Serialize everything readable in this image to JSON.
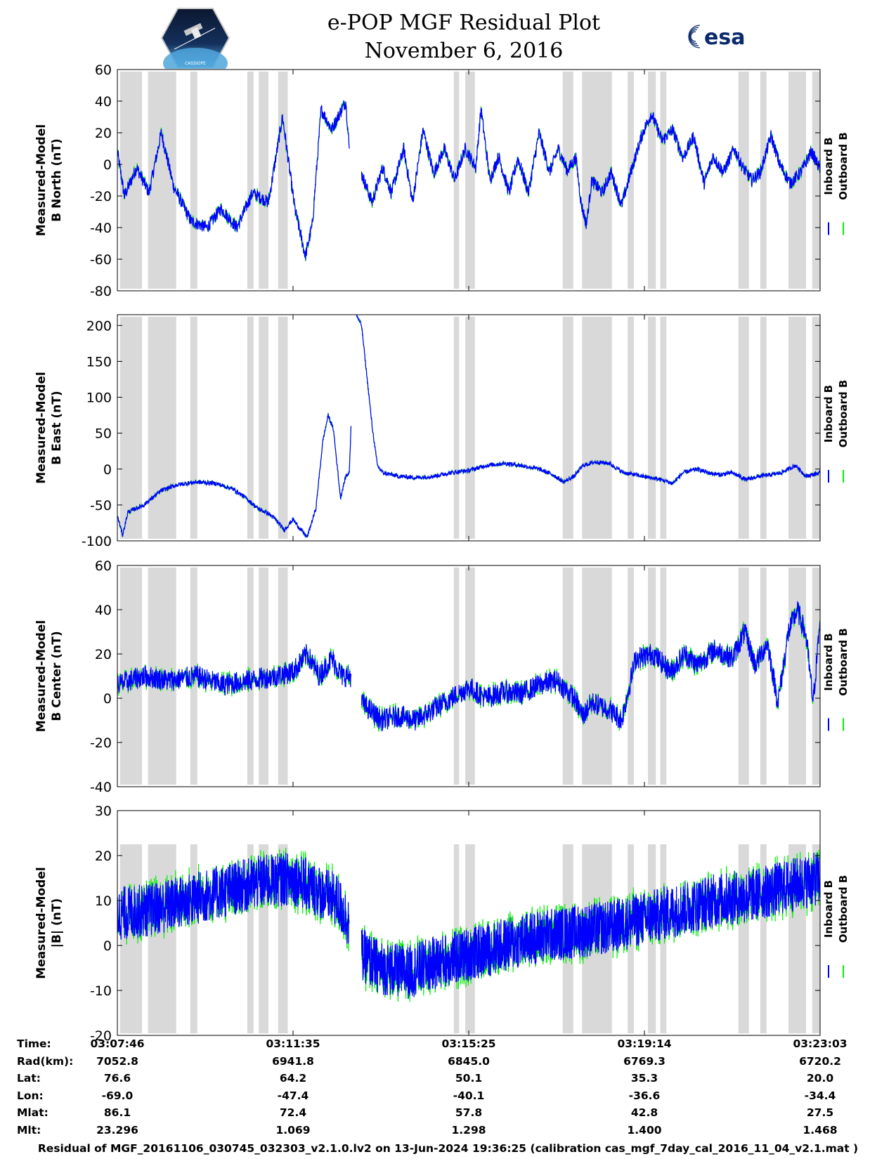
{
  "header": {
    "title_line1": "e-POP MGF Residual Plot",
    "title_line2": "November 6, 2016"
  },
  "logos": {
    "left": "cassiope-logo",
    "right_text": "esa"
  },
  "colors": {
    "inboard": "#0000ff",
    "outboard": "#00ee00",
    "shade": "#d9d9d9"
  },
  "chart_data": [
    {
      "type": "line",
      "ylabel_line1": "Measured-Model",
      "ylabel_line2": "B North (nT)",
      "ylim": [
        -80,
        60
      ],
      "yticks": [
        -80,
        -60,
        -40,
        -20,
        0,
        20,
        40,
        60
      ],
      "series": [
        {
          "name": "Inboard B"
        },
        {
          "name": "Outboard B"
        }
      ],
      "keypoints": [
        [
          0,
          8
        ],
        [
          0.4,
          -20
        ],
        [
          1.1,
          -2
        ],
        [
          1.8,
          -18
        ],
        [
          2.5,
          20
        ],
        [
          3.2,
          -14
        ],
        [
          4.2,
          -36
        ],
        [
          5.1,
          -40
        ],
        [
          5.9,
          -28
        ],
        [
          6.8,
          -40
        ],
        [
          7.7,
          -18
        ],
        [
          8.6,
          -24
        ],
        [
          9.4,
          30
        ],
        [
          10.1,
          -28
        ],
        [
          10.7,
          -58
        ],
        [
          11.1,
          -38
        ],
        [
          11.6,
          35
        ],
        [
          12.2,
          22
        ],
        [
          13.0,
          40
        ],
        [
          13.2,
          10
        ],
        [
          13.5,
          null
        ],
        [
          13.9,
          -6
        ],
        [
          14.5,
          -24
        ],
        [
          15.1,
          -2
        ],
        [
          15.6,
          -18
        ],
        [
          16.3,
          10
        ],
        [
          16.8,
          -24
        ],
        [
          17.4,
          22
        ],
        [
          18.0,
          -6
        ],
        [
          18.6,
          10
        ],
        [
          19.2,
          -10
        ],
        [
          19.8,
          10
        ],
        [
          20.4,
          -2
        ],
        [
          20.7,
          35
        ],
        [
          21.2,
          -10
        ],
        [
          21.7,
          5
        ],
        [
          22.3,
          -18
        ],
        [
          22.8,
          4
        ],
        [
          23.4,
          -18
        ],
        [
          24.0,
          20
        ],
        [
          24.6,
          -5
        ],
        [
          25.1,
          10
        ],
        [
          25.6,
          -4
        ],
        [
          26.1,
          4
        ],
        [
          26.4,
          -25
        ],
        [
          26.7,
          -38
        ],
        [
          27.0,
          -10
        ],
        [
          27.6,
          -18
        ],
        [
          28.1,
          -5
        ],
        [
          28.7,
          -26
        ],
        [
          29.3,
          -2
        ],
        [
          29.9,
          20
        ],
        [
          30.4,
          32
        ],
        [
          31.0,
          15
        ],
        [
          31.6,
          22
        ],
        [
          32.2,
          4
        ],
        [
          32.8,
          18
        ],
        [
          33.4,
          -12
        ],
        [
          33.9,
          5
        ],
        [
          34.5,
          -5
        ],
        [
          35.1,
          10
        ],
        [
          35.6,
          -2
        ],
        [
          36.1,
          -10
        ],
        [
          36.6,
          -5
        ],
        [
          37.2,
          18
        ],
        [
          37.7,
          0
        ],
        [
          38.3,
          -12
        ],
        [
          38.9,
          -5
        ],
        [
          39.5,
          8
        ],
        [
          40.0,
          -3
        ]
      ],
      "noise": 4
    },
    {
      "type": "line",
      "ylabel_line1": "Measured-Model",
      "ylabel_line2": "B East (nT)",
      "ylim": [
        -100,
        215
      ],
      "yticks": [
        -100,
        -50,
        0,
        50,
        100,
        150,
        200
      ],
      "series": [
        {
          "name": "Inboard B"
        },
        {
          "name": "Outboard B"
        }
      ],
      "keypoints": [
        [
          0,
          -65
        ],
        [
          0.3,
          -92
        ],
        [
          0.6,
          -60
        ],
        [
          1.5,
          -50
        ],
        [
          2.5,
          -30
        ],
        [
          3.4,
          -22
        ],
        [
          4.5,
          -18
        ],
        [
          5.6,
          -20
        ],
        [
          6.6,
          -28
        ],
        [
          7.3,
          -40
        ],
        [
          8.0,
          -55
        ],
        [
          8.6,
          -62
        ],
        [
          9.0,
          -70
        ],
        [
          9.5,
          -85
        ],
        [
          10.0,
          -70
        ],
        [
          10.3,
          -80
        ],
        [
          10.8,
          -95
        ],
        [
          11.3,
          -55
        ],
        [
          11.7,
          40
        ],
        [
          12.0,
          75
        ],
        [
          12.3,
          55
        ],
        [
          12.7,
          -40
        ],
        [
          13.0,
          -10
        ],
        [
          13.2,
          -5
        ],
        [
          13.3,
          60
        ],
        [
          13.5,
          null
        ],
        [
          11.0,
          null
        ],
        [
          11.1,
          null
        ],
        [
          11.3,
          null
        ],
        [
          11.4,
          null
        ],
        [
          11.5,
          null
        ],
        [
          11.6,
          null
        ],
        [
          11.7,
          null
        ],
        [
          11.8,
          null
        ],
        [
          11.9,
          null
        ],
        [
          12.0,
          null
        ],
        [
          12.1,
          null
        ],
        [
          11.0,
          null
        ]
      ],
      "keypoints_b": [
        [
          11.0,
          null
        ],
        [
          11.0,
          null
        ],
        [
          11.0,
          null
        ],
        [
          11.0,
          null
        ]
      ],
      "noise": 3,
      "segment2": [
        [
          11.0,
          null
        ],
        [
          11.0,
          null
        ]
      ],
      "part2": [
        [
          11.0,
          null
        ]
      ],
      "after": [
        [
          11.0,
          null
        ]
      ]
    },
    {
      "type": "line",
      "ylabel_line1": "Measured-Model",
      "ylabel_line2": "B Center (nT)",
      "ylim": [
        -40,
        60
      ],
      "yticks": [
        -40,
        -20,
        0,
        20,
        40,
        60
      ],
      "series": [
        {
          "name": "Inboard B"
        },
        {
          "name": "Outboard B"
        }
      ],
      "keypoints": [
        [
          0,
          6
        ],
        [
          1.5,
          10
        ],
        [
          3.0,
          8
        ],
        [
          4.5,
          10
        ],
        [
          6.0,
          6
        ],
        [
          7.5,
          8
        ],
        [
          9.0,
          10
        ],
        [
          10.0,
          12
        ],
        [
          10.8,
          20
        ],
        [
          11.5,
          10
        ],
        [
          12.2,
          18
        ],
        [
          12.8,
          10
        ],
        [
          13.3,
          10
        ],
        [
          13.5,
          null
        ],
        [
          13.9,
          -2
        ],
        [
          15.0,
          -10
        ],
        [
          16.0,
          -8
        ],
        [
          17.0,
          -10
        ],
        [
          18.0,
          -5
        ],
        [
          19.0,
          0
        ],
        [
          20.0,
          5
        ],
        [
          21.0,
          0
        ],
        [
          22.0,
          3
        ],
        [
          23.0,
          2
        ],
        [
          24.0,
          6
        ],
        [
          25.0,
          8
        ],
        [
          26.0,
          0
        ],
        [
          26.5,
          -8
        ],
        [
          27.0,
          -2
        ],
        [
          28.0,
          -5
        ],
        [
          28.7,
          -10
        ],
        [
          29.5,
          18
        ],
        [
          30.5,
          20
        ],
        [
          31.5,
          12
        ],
        [
          32.3,
          20
        ],
        [
          33.0,
          15
        ],
        [
          34.0,
          22
        ],
        [
          35.0,
          18
        ],
        [
          35.7,
          30
        ],
        [
          36.3,
          15
        ],
        [
          37.0,
          25
        ],
        [
          37.6,
          -2
        ],
        [
          38.2,
          30
        ],
        [
          38.7,
          40
        ],
        [
          39.2,
          28
        ],
        [
          39.6,
          -2
        ],
        [
          40.0,
          35
        ]
      ],
      "noise": 5
    },
    {
      "type": "line",
      "ylabel_line1": "Measured-Model",
      "ylabel_line2": "|B| (nT)",
      "ylim": [
        -20,
        30
      ],
      "yticks": [
        -20,
        -10,
        0,
        10,
        20,
        30
      ],
      "series": [
        {
          "name": "Inboard B"
        },
        {
          "name": "Outboard B"
        }
      ],
      "keypoints": [
        [
          0,
          7
        ],
        [
          2.0,
          8
        ],
        [
          4.0,
          10
        ],
        [
          6.0,
          12
        ],
        [
          8.0,
          14
        ],
        [
          10.0,
          15
        ],
        [
          11.5,
          12
        ],
        [
          12.5,
          10
        ],
        [
          13.2,
          5
        ],
        [
          13.5,
          null
        ],
        [
          13.9,
          -2
        ],
        [
          15.0,
          -5
        ],
        [
          16.5,
          -6
        ],
        [
          18.0,
          -4
        ],
        [
          20.0,
          -2
        ],
        [
          22.0,
          0
        ],
        [
          24.0,
          2
        ],
        [
          26.0,
          3
        ],
        [
          28.0,
          4
        ],
        [
          30.0,
          6
        ],
        [
          32.0,
          8
        ],
        [
          34.0,
          10
        ],
        [
          36.0,
          11
        ],
        [
          38.0,
          13
        ],
        [
          40.0,
          15
        ]
      ],
      "noise": 6
    }
  ],
  "shaded_intervals": [
    [
      0.15,
      1.4
    ],
    [
      1.75,
      3.35
    ],
    [
      4.15,
      4.55
    ],
    [
      7.4,
      7.75
    ],
    [
      8.05,
      8.6
    ],
    [
      9.15,
      9.7
    ],
    [
      19.15,
      19.45
    ],
    [
      19.8,
      20.35
    ],
    [
      25.35,
      25.95
    ],
    [
      26.45,
      28.15
    ],
    [
      29.05,
      29.4
    ],
    [
      30.2,
      30.65
    ],
    [
      30.9,
      31.25
    ],
    [
      35.35,
      35.95
    ],
    [
      36.6,
      36.95
    ],
    [
      38.2,
      39.2
    ],
    [
      39.55,
      40.0
    ]
  ],
  "x_range": [
    0,
    40
  ],
  "legend": {
    "inboard": "Inboard B",
    "outboard": "Outboard B"
  },
  "table": {
    "labels": [
      "Time:",
      "Rad(km):",
      "Lat:",
      "Lon:",
      "Mlat:",
      "Mlt:"
    ],
    "columns": [
      [
        "03:07:46",
        "7052.8",
        "76.6",
        "-69.0",
        "86.1",
        "23.296"
      ],
      [
        "03:11:35",
        "6941.8",
        "64.2",
        "-47.4",
        "72.4",
        "1.069"
      ],
      [
        "03:15:25",
        "6845.0",
        "50.1",
        "-40.1",
        "57.8",
        "1.298"
      ],
      [
        "03:19:14",
        "6769.3",
        "35.3",
        "-36.6",
        "42.8",
        "1.400"
      ],
      [
        "03:23:03",
        "6720.2",
        "20.0",
        "-34.4",
        "27.5",
        "1.468"
      ]
    ],
    "column_x": [
      0,
      10,
      20,
      30,
      40
    ]
  },
  "footer": "Residual of MGF_20161106_030745_032303_v2.1.0.lv2 on 13-Jun-2024 19:36:25 (calibration cas_mgf_7day_cal_2016_11_04_v2.1.mat )"
}
